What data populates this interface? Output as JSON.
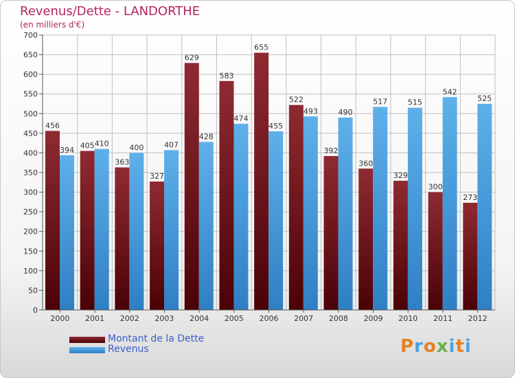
{
  "title": "Revenus/Dette - LANDORTHE",
  "subtitle": "(en milliers d'€)",
  "colors": {
    "dette": "#7b0f16",
    "revenus": "#3c98d9",
    "title": "#b4235f",
    "legend_text": "#3a5fcd"
  },
  "legend": {
    "dette_label": "Montant de la Dette",
    "revenus_label": "Revenus"
  },
  "logo": {
    "text": "Proxiti",
    "letters": [
      {
        "ch": "P",
        "color": "#e8801e"
      },
      {
        "ch": "r",
        "color": "#4aa3df"
      },
      {
        "ch": "o",
        "color": "#e8801e"
      },
      {
        "ch": "x",
        "color": "#6ab04c"
      },
      {
        "ch": "i",
        "color": "#4aa3df"
      },
      {
        "ch": "t",
        "color": "#e8801e"
      },
      {
        "ch": "i",
        "color": "#4aa3df"
      }
    ]
  },
  "chart_data": {
    "type": "bar",
    "title": "Revenus/Dette - LANDORTHE",
    "ylabel": "(en milliers d'€)",
    "xlabel": "",
    "categories": [
      "2000",
      "2001",
      "2002",
      "2003",
      "2004",
      "2005",
      "2006",
      "2007",
      "2008",
      "2009",
      "2010",
      "2011",
      "2012"
    ],
    "series": [
      {
        "name": "Montant de la Dette",
        "values": [
          456,
          405,
          363,
          327,
          629,
          583,
          655,
          522,
          392,
          360,
          329,
          300,
          273
        ]
      },
      {
        "name": "Revenus",
        "values": [
          394,
          410,
          400,
          407,
          428,
          474,
          455,
          493,
          490,
          517,
          515,
          542,
          525
        ]
      }
    ],
    "ylim": [
      0,
      700
    ],
    "yticks": [
      0,
      50,
      100,
      150,
      200,
      250,
      300,
      350,
      400,
      450,
      500,
      550,
      600,
      650,
      700
    ],
    "grid": true,
    "legend_position": "bottom-left"
  }
}
